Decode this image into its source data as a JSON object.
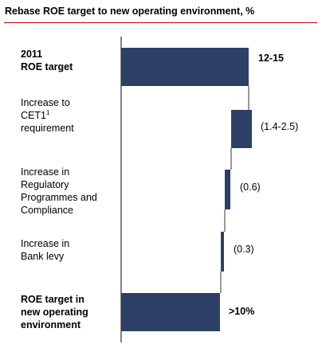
{
  "title": "Rebase ROE target to new operating environment, %",
  "colors": {
    "bar": "#2e3f66",
    "title_rule": "#cc0000",
    "axis": "#000000"
  },
  "chart_data": {
    "type": "waterfall",
    "title": "Rebase ROE target to new operating environment, %",
    "unit": "%",
    "bars": [
      {
        "label_lines": [
          "2011",
          "ROE target"
        ],
        "bold": true,
        "kind": "total",
        "low": 0,
        "high": 13.5,
        "value_label": "12-15"
      },
      {
        "label_lines": [
          "Increase to",
          "CET1",
          "requirement"
        ],
        "superscript": "1",
        "bold": false,
        "kind": "decrease",
        "low": 11.5,
        "high": 13.5,
        "value_label": "(1.4-2.5)"
      },
      {
        "label_lines": [
          "Increase in",
          "Regulatory",
          "Programmes and",
          "Compliance"
        ],
        "bold": false,
        "kind": "decrease",
        "low": 10.9,
        "high": 11.5,
        "value_label": "(0.6)"
      },
      {
        "label_lines": [
          "Increase in",
          "Bank levy"
        ],
        "bold": false,
        "kind": "decrease",
        "low": 10.6,
        "high": 10.9,
        "value_label": "(0.3)"
      },
      {
        "label_lines": [
          "ROE target in",
          "new operating",
          "environment"
        ],
        "bold": true,
        "kind": "total",
        "low": 0,
        "high": 10.6,
        "value_label": ">10%"
      }
    ]
  }
}
